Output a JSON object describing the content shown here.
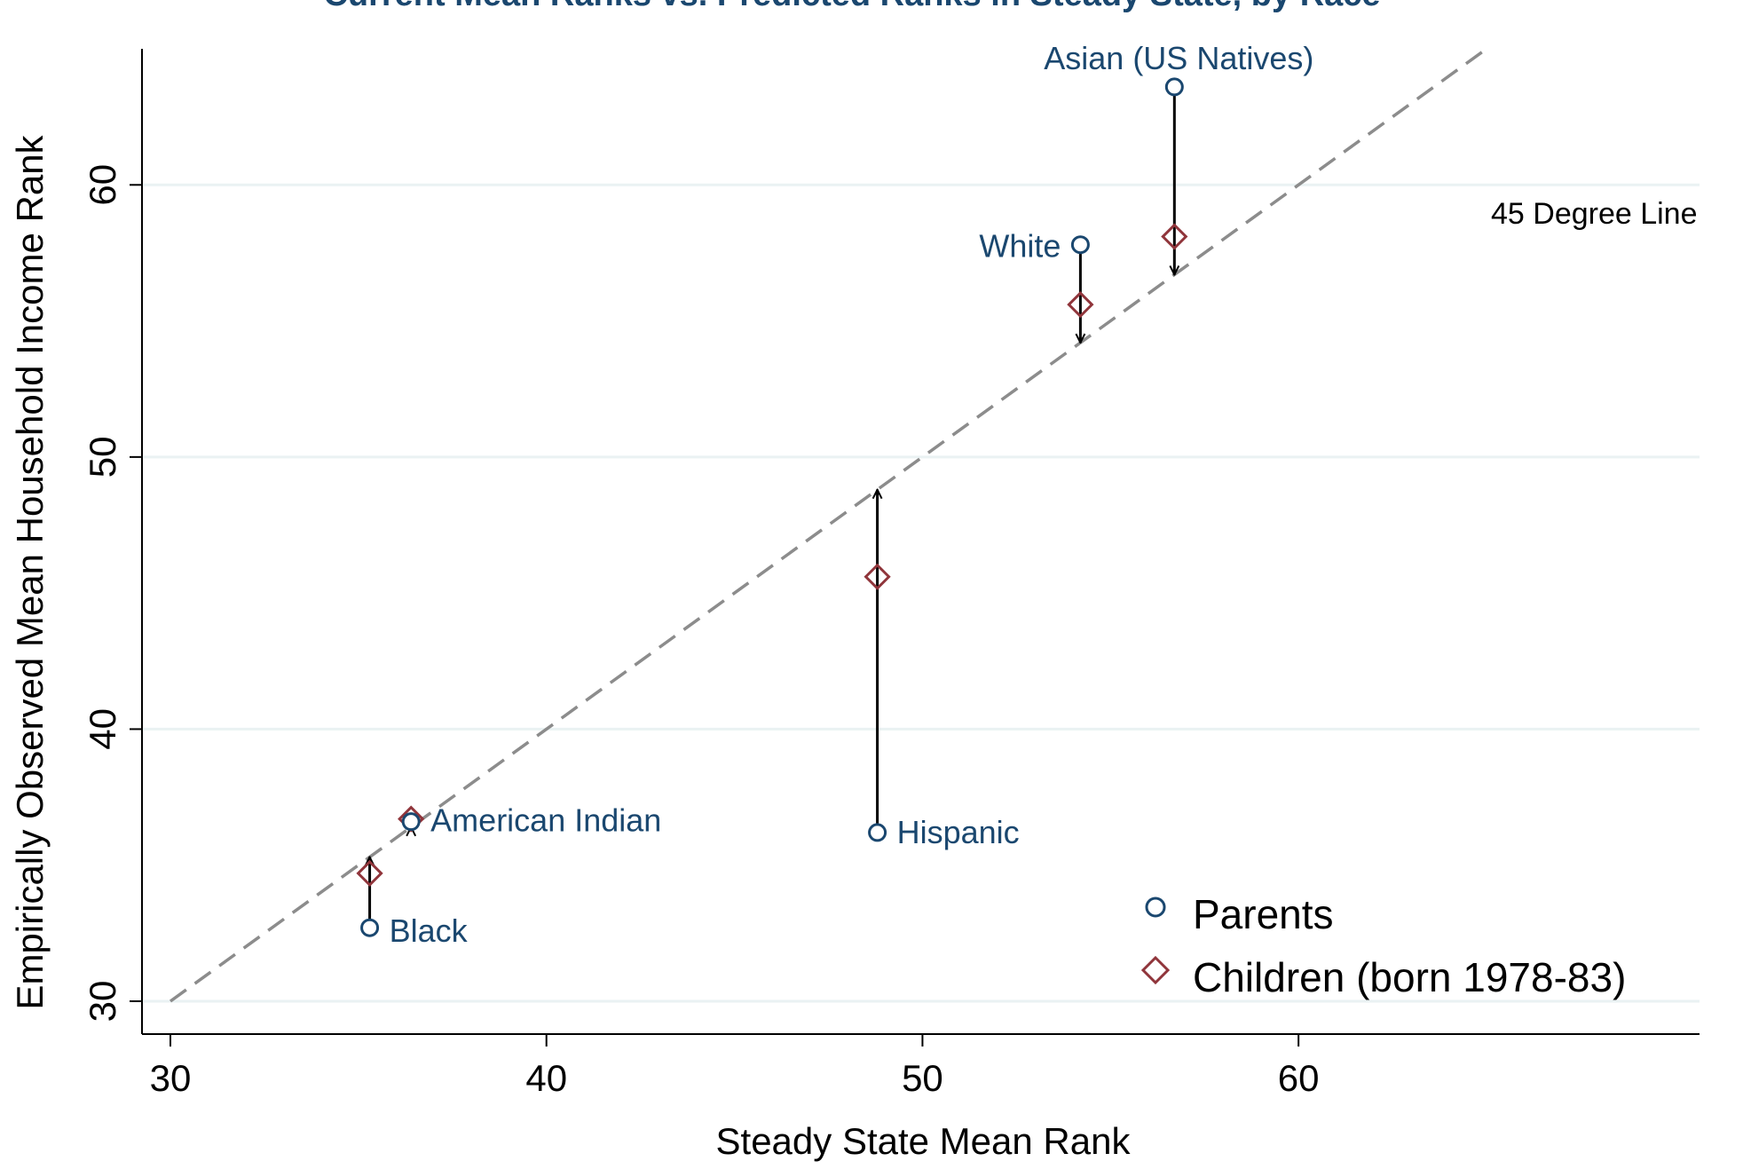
{
  "chart_data": {
    "type": "scatter",
    "title": "Current Mean Ranks vs. Predicted Ranks in Steady State, by Race",
    "xlabel": "Steady State Mean Rank",
    "ylabel": "Empirically Observed Mean Household Income Rank",
    "xlim": [
      30,
      65
    ],
    "ylim": [
      30,
      65
    ],
    "xticks": [
      "30",
      "40",
      "50",
      "60"
    ],
    "yticks": [
      "30",
      "40",
      "50",
      "60"
    ],
    "grid": "horizontal",
    "legend_position": "bottom-right",
    "series": [
      {
        "name": "Parents",
        "marker": "circle",
        "color": "#1a476f"
      },
      {
        "name": "Children (born 1978-83)",
        "marker": "diamond",
        "color": "#90353b"
      }
    ],
    "points": [
      {
        "label": "Asian (US Natives)",
        "x": 56.7,
        "parents": 63.6,
        "children": 58.1,
        "arrow_to": 56.7,
        "label_pos": "above"
      },
      {
        "label": "White",
        "x": 54.2,
        "parents": 57.8,
        "children": 55.6,
        "arrow_to": 54.2,
        "label_pos": "left"
      },
      {
        "label": "Hispanic",
        "x": 48.8,
        "parents": 36.2,
        "children": 45.6,
        "arrow_to": 48.8,
        "label_pos": "right"
      },
      {
        "label": "American Indian",
        "x": 36.4,
        "parents": 36.6,
        "children": 36.7,
        "arrow_to": 36.4,
        "label_pos": "right"
      },
      {
        "label": "Black",
        "x": 35.3,
        "parents": 32.7,
        "children": 34.7,
        "arrow_to": 35.3,
        "label_pos": "right"
      }
    ],
    "reference_line": {
      "label": "45 Degree Line",
      "from": [
        30,
        30
      ],
      "to": [
        65,
        65
      ]
    }
  },
  "colors": {
    "parents": "#1a476f",
    "children": "#90353b",
    "grid": "#eaf2f3",
    "reference_line": "#8c8c8c",
    "axis": "#000000",
    "title": "#1a476f"
  }
}
